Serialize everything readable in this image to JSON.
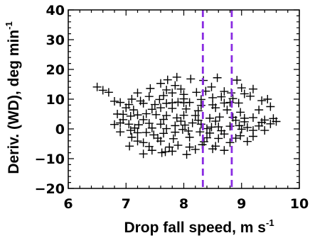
{
  "chart_data": {
    "type": "scatter",
    "xlabel": "Drop fall speed, m s",
    "xlabel_sup": "-1",
    "ylabel": "Deriv. (WD), deg min",
    "ylabel_sup": "-1",
    "xlim": [
      6,
      10
    ],
    "ylim": [
      -20,
      40
    ],
    "xticks": [
      6,
      7,
      8,
      9,
      10
    ],
    "yticks": [
      -20,
      -10,
      0,
      10,
      20,
      30,
      40
    ],
    "grid": false,
    "marker": "plus",
    "colors": {
      "points": "#000000",
      "vlines": "#8a2be2",
      "axes": "#000000"
    },
    "vlines": [
      8.33,
      8.83
    ],
    "points": [
      [
        6.5,
        14.1
      ],
      [
        6.6,
        13.0
      ],
      [
        6.7,
        12.3
      ],
      [
        6.8,
        9.3
      ],
      [
        6.9,
        8.9
      ],
      [
        7.05,
        8.2
      ],
      [
        7.3,
        8.6
      ],
      [
        7.5,
        8.2
      ],
      [
        7.7,
        8.6
      ],
      [
        7.8,
        8.8
      ],
      [
        7.9,
        9.0
      ],
      [
        8.0,
        8.8
      ],
      [
        8.1,
        8.9
      ],
      [
        8.3,
        7.9
      ],
      [
        8.5,
        8.1
      ],
      [
        8.7,
        8.7
      ],
      [
        8.8,
        8.9
      ],
      [
        8.95,
        8.7
      ],
      [
        6.85,
        5.0
      ],
      [
        6.95,
        4.9
      ],
      [
        7.08,
        4.3
      ],
      [
        7.2,
        4.7
      ],
      [
        7.35,
        5.1
      ],
      [
        7.52,
        4.8
      ],
      [
        7.7,
        4.5
      ],
      [
        7.88,
        3.7
      ],
      [
        8.0,
        4.6
      ],
      [
        8.2,
        4.5
      ],
      [
        8.45,
        3.6
      ],
      [
        8.62,
        4.0
      ],
      [
        8.85,
        3.9
      ],
      [
        9.05,
        3.6
      ],
      [
        9.2,
        3.8
      ],
      [
        9.4,
        3.0
      ],
      [
        9.55,
        3.5
      ],
      [
        9.6,
        2.5
      ],
      [
        6.8,
        1.5
      ],
      [
        6.9,
        2.0
      ],
      [
        7.05,
        1.6
      ],
      [
        7.22,
        1.4
      ],
      [
        7.4,
        1.9
      ],
      [
        7.6,
        1.6
      ],
      [
        7.85,
        1.1
      ],
      [
        8.02,
        1.3
      ],
      [
        8.15,
        2.0
      ],
      [
        8.3,
        1.6
      ],
      [
        8.48,
        0.6
      ],
      [
        8.6,
        0.7
      ],
      [
        8.8,
        0.9
      ],
      [
        8.96,
        1.1
      ],
      [
        9.1,
        0.5
      ],
      [
        9.2,
        -0.5
      ],
      [
        9.3,
        1.0
      ],
      [
        6.9,
        -1.0
      ],
      [
        7.08,
        -0.5
      ],
      [
        7.2,
        -1.3
      ],
      [
        7.35,
        -1.2
      ],
      [
        7.48,
        -2.0
      ],
      [
        7.65,
        -1.5
      ],
      [
        7.85,
        -1.1
      ],
      [
        8.08,
        -0.7
      ],
      [
        8.28,
        -1.0
      ],
      [
        8.45,
        -1.4
      ],
      [
        8.7,
        -1.7
      ],
      [
        8.98,
        -2.3
      ],
      [
        7.06,
        -5.8
      ],
      [
        7.3,
        -4.6
      ],
      [
        7.4,
        -5.9
      ],
      [
        7.6,
        -4.1
      ],
      [
        7.9,
        -5.5
      ],
      [
        8.1,
        -6.1
      ],
      [
        8.2,
        -6.9
      ],
      [
        8.55,
        -5.8
      ],
      [
        8.6,
        -3.2
      ],
      [
        7.45,
        -7.2
      ],
      [
        7.68,
        -7.7
      ],
      [
        7.8,
        -7.5
      ],
      [
        8.5,
        -6.7
      ],
      [
        8.7,
        -7.2
      ],
      [
        7.3,
        -8.4
      ],
      [
        7.62,
        -8.0
      ],
      [
        7.6,
        15.3
      ],
      [
        7.85,
        14.6
      ],
      [
        7.72,
        16.5
      ],
      [
        7.95,
        13.4
      ],
      [
        8.12,
        16.8
      ],
      [
        8.34,
        16.3
      ],
      [
        8.48,
        14.1
      ],
      [
        8.22,
        12.3
      ],
      [
        8.7,
        12.6
      ],
      [
        9.0,
        13.8
      ],
      [
        9.05,
        11.8
      ],
      [
        7.2,
        12.1
      ],
      [
        7.4,
        10.9
      ],
      [
        7.65,
        11.2
      ],
      [
        7.8,
        12.1
      ],
      [
        8.0,
        11.6
      ],
      [
        8.5,
        10.5
      ],
      [
        8.65,
        10.8
      ],
      [
        7.1,
        10.0
      ],
      [
        7.25,
        9.4
      ],
      [
        7.58,
        9.9
      ],
      [
        8.0,
        10.1
      ],
      [
        8.3,
        9.9
      ],
      [
        8.85,
        10.2
      ],
      [
        9.15,
        11.0
      ],
      [
        9.35,
        9.5
      ],
      [
        9.45,
        10.0
      ],
      [
        7.0,
        7.1
      ],
      [
        7.13,
        6.4
      ],
      [
        7.45,
        6.6
      ],
      [
        7.6,
        7.1
      ],
      [
        7.8,
        6.9
      ],
      [
        8.04,
        6.7
      ],
      [
        8.25,
        6.1
      ],
      [
        8.55,
        7.1
      ],
      [
        8.75,
        6.4
      ],
      [
        8.98,
        5.6
      ],
      [
        9.3,
        6.4
      ],
      [
        9.5,
        7.5
      ],
      [
        6.95,
        3.1
      ],
      [
        7.3,
        3.1
      ],
      [
        7.65,
        3.2
      ],
      [
        7.95,
        2.6
      ],
      [
        8.25,
        2.9
      ],
      [
        8.55,
        2.6
      ],
      [
        8.9,
        2.9
      ],
      [
        9.05,
        2.4
      ],
      [
        9.35,
        2.2
      ],
      [
        9.5,
        1.7
      ],
      [
        7.15,
        0.3
      ],
      [
        7.45,
        0.3
      ],
      [
        7.7,
        0.1
      ],
      [
        7.98,
        -0.2
      ],
      [
        8.4,
        0.1
      ],
      [
        8.65,
        -0.6
      ],
      [
        9.0,
        -0.1
      ],
      [
        9.4,
        -0.5
      ],
      [
        7.1,
        -2.8
      ],
      [
        7.55,
        -3.1
      ],
      [
        7.82,
        -3.3
      ],
      [
        8.1,
        -2.8
      ],
      [
        8.4,
        -3.0
      ],
      [
        8.9,
        -3.1
      ],
      [
        9.2,
        -2.5
      ],
      [
        7.2,
        -4.1
      ],
      [
        7.75,
        -6.1
      ],
      [
        8.35,
        -4.3
      ],
      [
        8.8,
        -4.6
      ],
      [
        9.1,
        -4.2
      ],
      [
        8.32,
        -5.3
      ],
      [
        8.05,
        -8.6
      ],
      [
        7.88,
        17.4
      ],
      [
        8.58,
        17.2
      ],
      [
        8.92,
        16.4
      ],
      [
        9.2,
        13.4
      ],
      [
        7.42,
        13.6
      ],
      [
        7.7,
        13.1
      ],
      [
        8.38,
        12.7
      ],
      [
        8.82,
        12.1
      ]
    ]
  }
}
